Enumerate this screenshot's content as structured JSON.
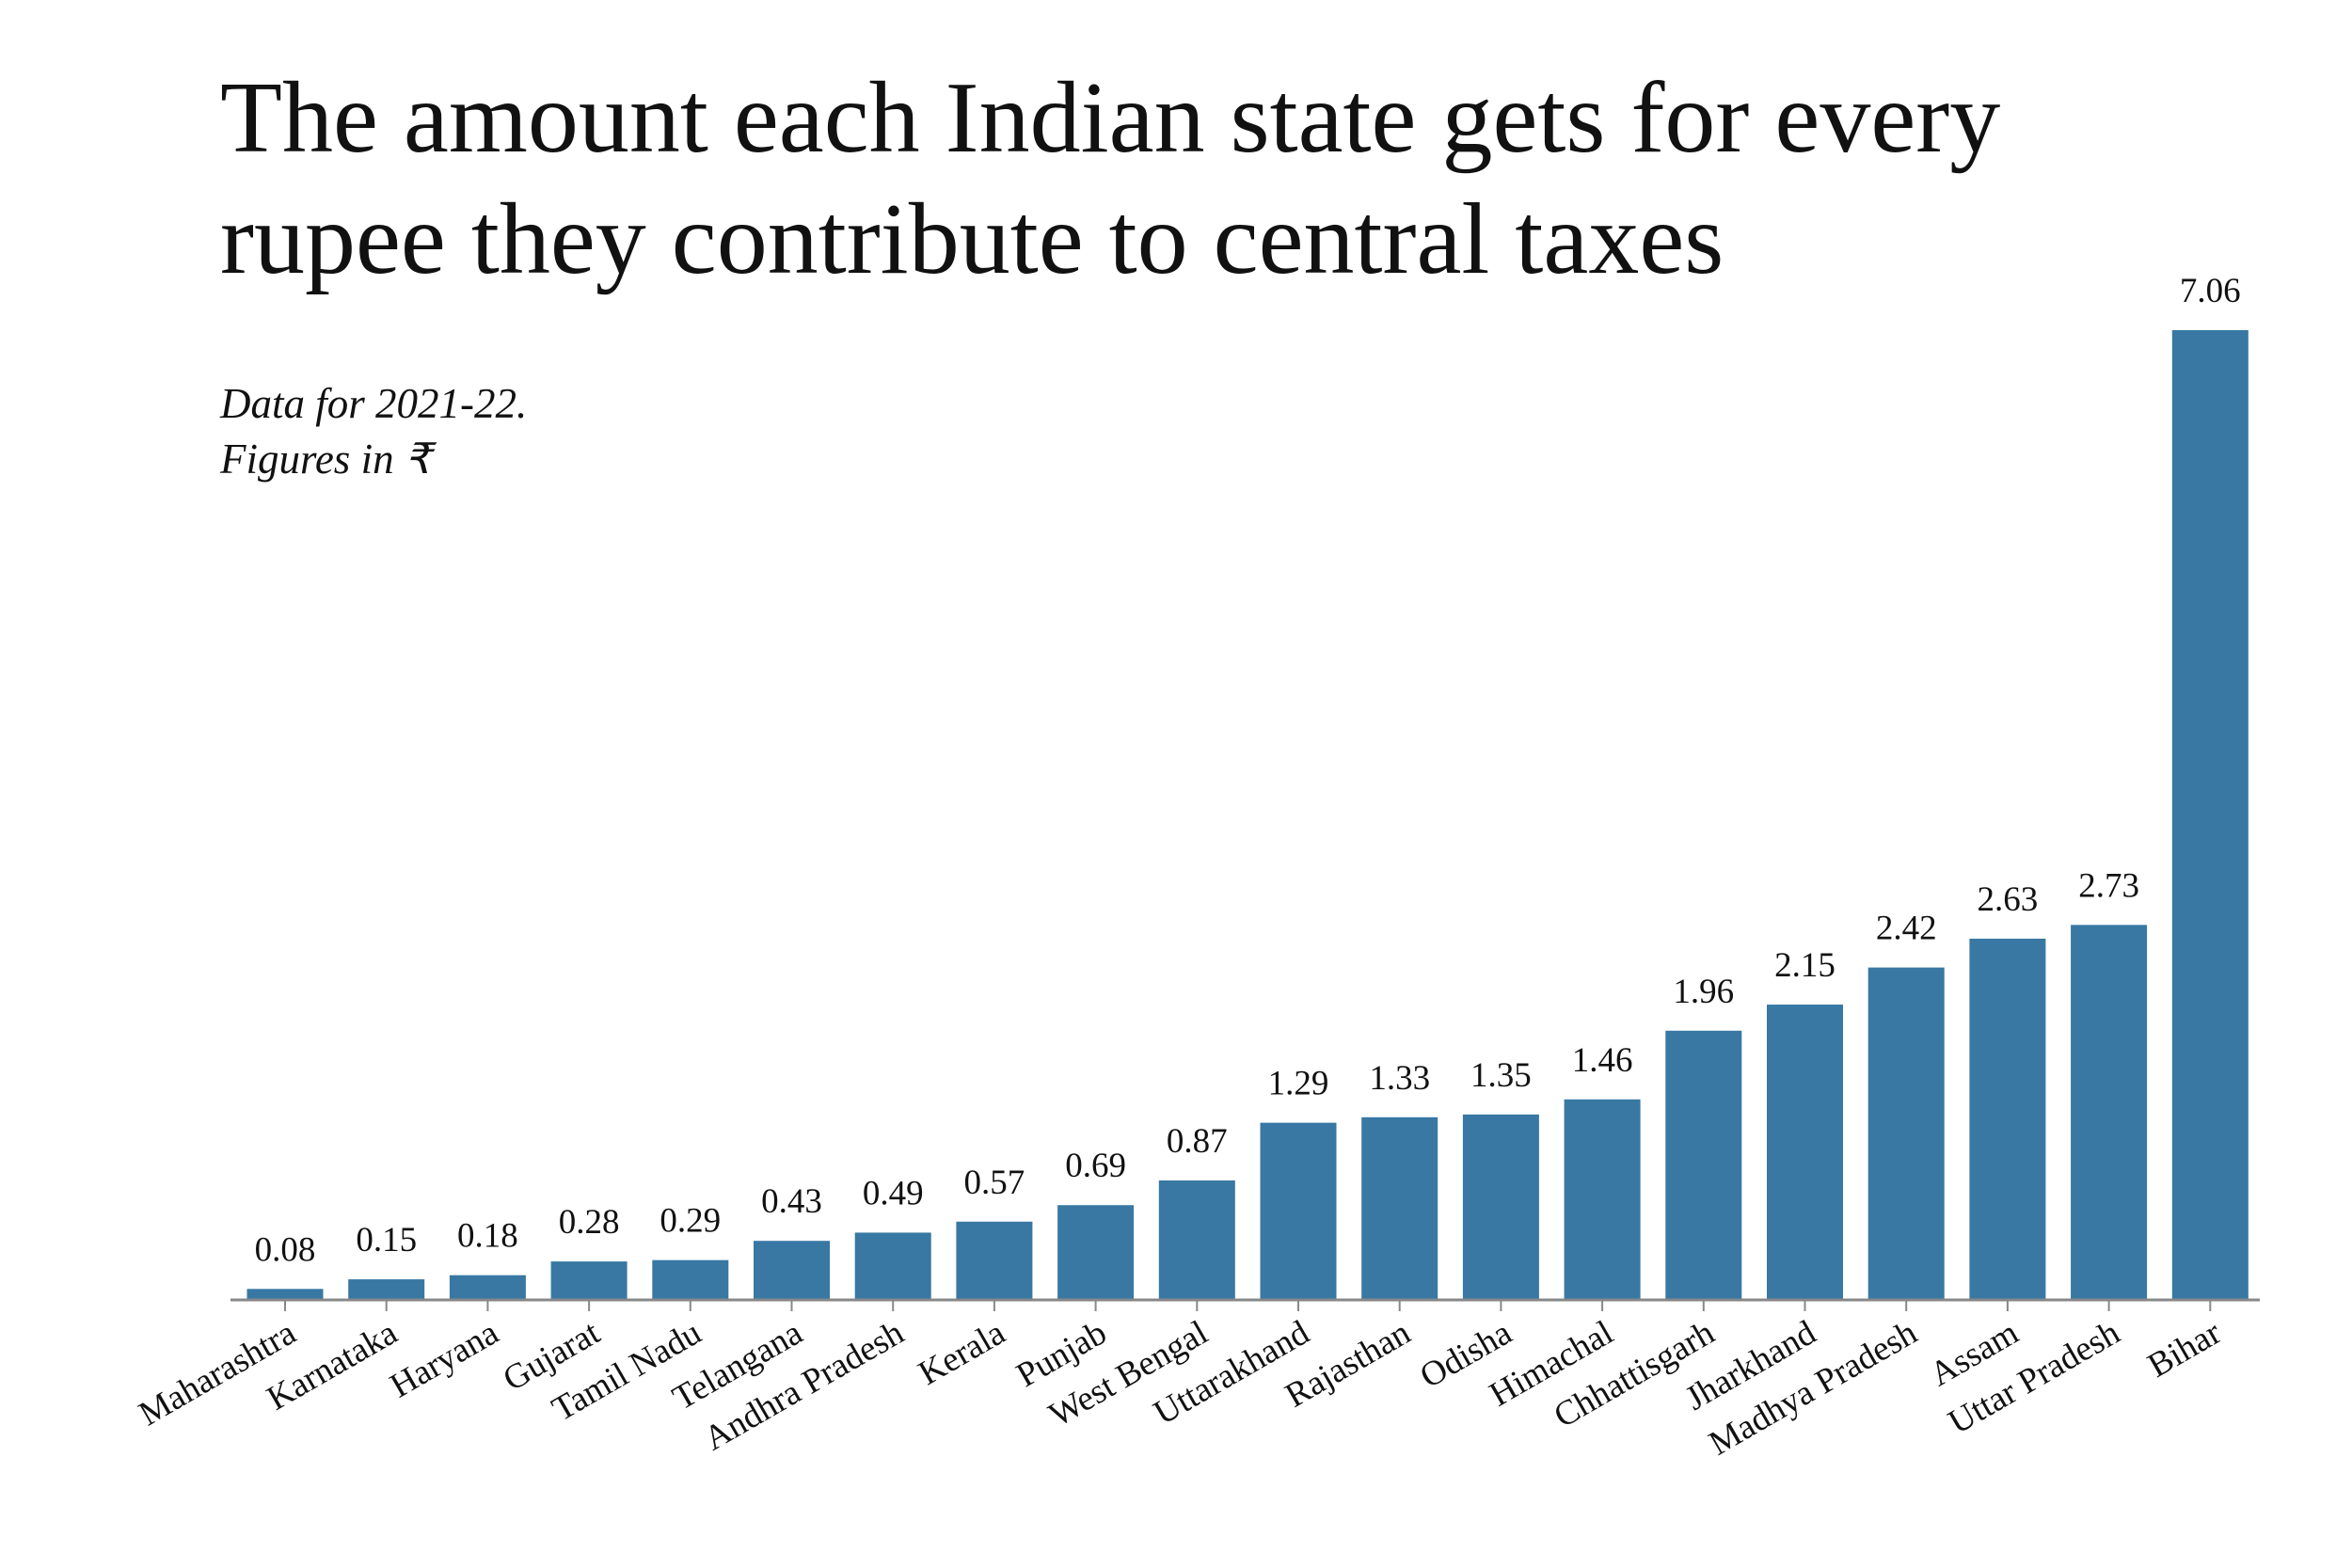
{
  "chart_data": {
    "type": "bar",
    "title": [
      "The amount each Indian state gets for every",
      "rupee they contribute to central taxes"
    ],
    "subtitle": [
      "Data for 2021-22.",
      "Figures in ₹"
    ],
    "categories": [
      "Maharashtra",
      "Karnataka",
      "Haryana",
      "Gujarat",
      "Tamil Nadu",
      "Telangana",
      "Andhra Pradesh",
      "Kerala",
      "Punjab",
      "West Bengal",
      "Uttarakhand",
      "Rajasthan",
      "Odisha",
      "Himachal",
      "Chhattisgarh",
      "Jharkhand",
      "Madhya Pradesh",
      "Assam",
      "Uttar Pradesh",
      "Bihar"
    ],
    "values": [
      0.08,
      0.15,
      0.18,
      0.28,
      0.29,
      0.43,
      0.49,
      0.57,
      0.69,
      0.87,
      1.29,
      1.33,
      1.35,
      1.46,
      1.96,
      2.15,
      2.42,
      2.63,
      2.73,
      7.06
    ],
    "color": "#3878a3"
  }
}
